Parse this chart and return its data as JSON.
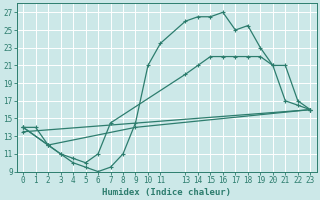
{
  "xlabel": "Humidex (Indice chaleur)",
  "bg_color": "#cce8e8",
  "grid_color": "#ffffff",
  "line_color": "#2d7d6e",
  "xlim": [
    -0.5,
    23.5
  ],
  "ylim": [
    9,
    28
  ],
  "xticks": [
    0,
    1,
    2,
    3,
    4,
    5,
    6,
    7,
    8,
    9,
    10,
    11,
    13,
    14,
    15,
    16,
    17,
    18,
    19,
    20,
    21,
    22,
    23
  ],
  "yticks": [
    9,
    11,
    13,
    15,
    17,
    19,
    21,
    23,
    25,
    27
  ],
  "line1_x": [
    0,
    1,
    2,
    3,
    4,
    5,
    6,
    7,
    8,
    9,
    10,
    11,
    13,
    14,
    15,
    16,
    17,
    18,
    19,
    20,
    21,
    22,
    23
  ],
  "line1_y": [
    14,
    14,
    12,
    11,
    10,
    9.5,
    9,
    9.5,
    11,
    14.5,
    21,
    23.5,
    26,
    26.5,
    26.5,
    27,
    25,
    25.5,
    23,
    21,
    17,
    16.5,
    16
  ],
  "line2_x": [
    0,
    2,
    3,
    4,
    5,
    6,
    7,
    13,
    14,
    15,
    16,
    17,
    18,
    19,
    20,
    21,
    22,
    23
  ],
  "line2_y": [
    14,
    12,
    11,
    10.5,
    10,
    11,
    14.5,
    20,
    21,
    22,
    22,
    22,
    22,
    22,
    21,
    21,
    17,
    16
  ],
  "line3_x": [
    0,
    2,
    9,
    23
  ],
  "line3_y": [
    14,
    12,
    14,
    16
  ],
  "line4_x": [
    0,
    23
  ],
  "line4_y": [
    13.5,
    16
  ]
}
